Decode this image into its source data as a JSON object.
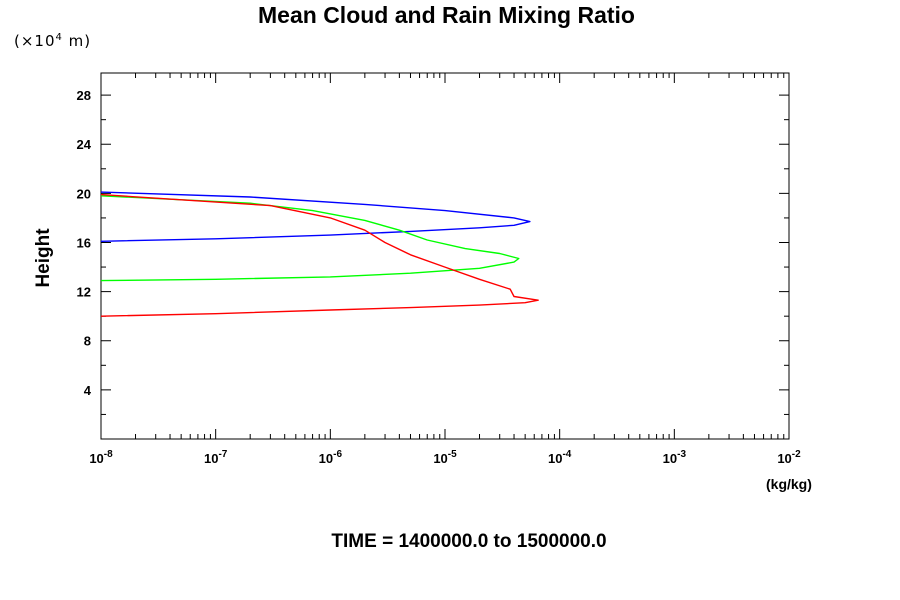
{
  "chart_data": {
    "type": "line",
    "title": "Mean Cloud and Rain Mixing Ratio",
    "y_unit_prefix": "(×10",
    "y_unit_exponent": "4",
    "y_unit_suffix": " m)",
    "ylabel": "Height",
    "xlabel": "(kg/kg)",
    "x_scale": "log",
    "xlim": [
      1e-08,
      0.01
    ],
    "ylim": [
      0,
      29.8
    ],
    "x_tick_base": "10",
    "x_ticks": [
      {
        "value": 1e-08,
        "exp": "-8"
      },
      {
        "value": 1e-07,
        "exp": "-7"
      },
      {
        "value": 1e-06,
        "exp": "-6"
      },
      {
        "value": 1e-05,
        "exp": "-5"
      },
      {
        "value": 0.0001,
        "exp": "-4"
      },
      {
        "value": 0.001,
        "exp": "-3"
      },
      {
        "value": 0.01,
        "exp": "-2"
      }
    ],
    "y_ticks": [
      4,
      8,
      12,
      16,
      20,
      24,
      28
    ],
    "grid": false,
    "subtitle": "TIME = 1400000.0 to 1500000.0",
    "series": [
      {
        "color": "#0000ff",
        "points": [
          [
            1e-08,
            16.1
          ],
          [
            1e-07,
            16.3
          ],
          [
            1e-06,
            16.6
          ],
          [
            5e-06,
            16.9
          ],
          [
            2e-05,
            17.2
          ],
          [
            4e-05,
            17.4
          ],
          [
            5.5e-05,
            17.7
          ],
          [
            4e-05,
            18.0
          ],
          [
            1e-05,
            18.6
          ],
          [
            2e-06,
            19.1
          ],
          [
            2e-07,
            19.7
          ],
          [
            1e-08,
            20.1
          ]
        ]
      },
      {
        "color": "#00ff00",
        "points": [
          [
            1e-08,
            12.9
          ],
          [
            1e-07,
            13.0
          ],
          [
            1e-06,
            13.2
          ],
          [
            5e-06,
            13.5
          ],
          [
            2e-05,
            13.9
          ],
          [
            4e-05,
            14.4
          ],
          [
            4.4e-05,
            14.7
          ],
          [
            3e-05,
            15.1
          ],
          [
            1.5e-05,
            15.5
          ],
          [
            7e-06,
            16.2
          ],
          [
            4e-06,
            17.0
          ],
          [
            2e-06,
            17.8
          ],
          [
            7e-07,
            18.6
          ],
          [
            2e-07,
            19.2
          ],
          [
            1e-08,
            19.8
          ]
        ]
      },
      {
        "color": "#ff0000",
        "points": [
          [
            1e-08,
            10.0
          ],
          [
            1e-07,
            10.2
          ],
          [
            1e-06,
            10.5
          ],
          [
            5e-06,
            10.7
          ],
          [
            2e-05,
            10.9
          ],
          [
            5e-05,
            11.1
          ],
          [
            6.5e-05,
            11.3
          ],
          [
            4e-05,
            11.6
          ],
          [
            3.7e-05,
            12.2
          ],
          [
            2e-05,
            13.0
          ],
          [
            1e-05,
            14.0
          ],
          [
            5e-06,
            15.0
          ],
          [
            3e-06,
            16.0
          ],
          [
            2e-06,
            17.0
          ],
          [
            1e-06,
            18.0
          ],
          [
            3e-07,
            19.0
          ],
          [
            1e-08,
            19.9
          ]
        ]
      }
    ]
  }
}
